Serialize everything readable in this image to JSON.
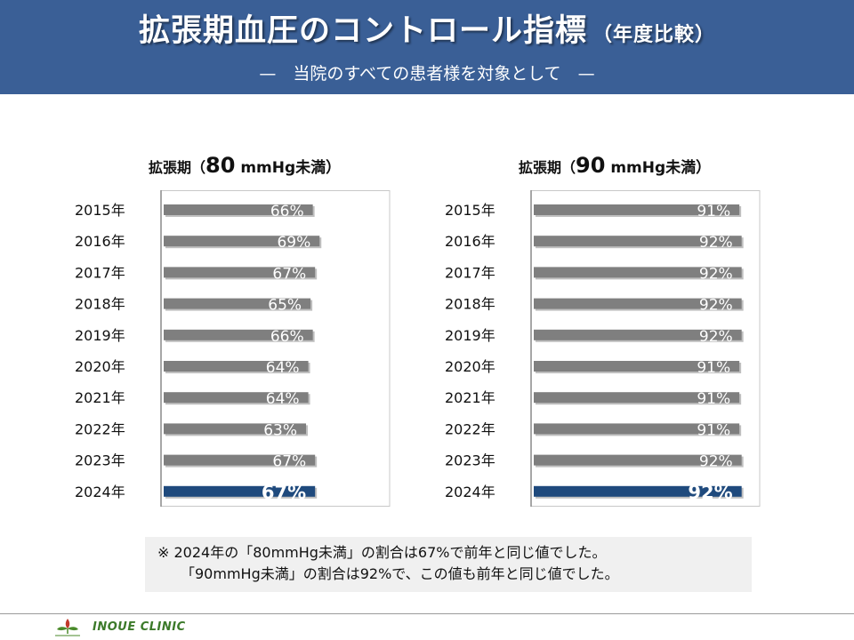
{
  "header": {
    "title": "拡張期血圧のコントロール指標",
    "title_sub": "（年度比較）",
    "subtitle": "—　当院のすべての患者様を対象として　—"
  },
  "chart_data": [
    {
      "type": "bar",
      "title_prefix": "拡張期（",
      "title_value": "80",
      "title_suffix": " mmHg未満）",
      "categories": [
        "2015年",
        "2016年",
        "2017年",
        "2018年",
        "2019年",
        "2020年",
        "2021年",
        "2022年",
        "2023年",
        "2024年"
      ],
      "values": [
        66,
        69,
        67,
        65,
        66,
        64,
        64,
        63,
        67,
        67
      ],
      "value_labels": [
        "66%",
        "69%",
        "67%",
        "65%",
        "66%",
        "64%",
        "64%",
        "63%",
        "67%",
        "67%"
      ],
      "xlim": [
        0,
        100
      ],
      "orientation": "horizontal",
      "highlight_index": 9,
      "grid": false
    },
    {
      "type": "bar",
      "title_prefix": "拡張期（",
      "title_value": "90",
      "title_suffix": " mmHg未満）",
      "categories": [
        "2015年",
        "2016年",
        "2017年",
        "2018年",
        "2019年",
        "2020年",
        "2021年",
        "2022年",
        "2023年",
        "2024年"
      ],
      "values": [
        91,
        92,
        92,
        92,
        92,
        91,
        91,
        91,
        92,
        92
      ],
      "value_labels": [
        "91%",
        "92%",
        "92%",
        "92%",
        "92%",
        "91%",
        "91%",
        "91%",
        "92%",
        "92%"
      ],
      "xlim": [
        0,
        100
      ],
      "orientation": "horizontal",
      "highlight_index": 9,
      "grid": false
    }
  ],
  "colors": {
    "header_bg": "#3a5f96",
    "bar": "#7f7f7f",
    "bar_highlight": "#1f4a7d",
    "note_bg": "#f0f0f0",
    "logo_text": "#3c7a2a"
  },
  "note": {
    "line1": "※  2024年の「80mmHg未満」の割合は67%で前年と同じ値でした。",
    "line2": "「90mmHg未満」の割合は92%で、この値も前年と同じ値でした。"
  },
  "footer": {
    "logo_icon": "clinic-logo-icon",
    "clinic_name": "INOUE CLINIC"
  }
}
